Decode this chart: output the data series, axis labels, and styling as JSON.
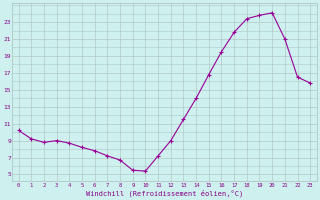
{
  "hours": [
    0,
    1,
    2,
    3,
    4,
    5,
    6,
    7,
    8,
    9,
    10,
    11,
    12,
    13,
    14,
    15,
    16,
    17,
    18,
    19,
    20,
    21,
    22,
    23
  ],
  "y_values": [
    10.2,
    9.2,
    8.8,
    9.0,
    8.7,
    8.2,
    7.8,
    7.2,
    6.7,
    5.5,
    5.4,
    7.2,
    9.0,
    11.5,
    14.0,
    16.8,
    19.5,
    21.8,
    23.4,
    23.8,
    24.1,
    21.0,
    16.5,
    15.8
  ],
  "line_color": "#990099",
  "bg_color": "#cef0ee",
  "grid_color": "#b0c8c8",
  "xlabel": "Windchill (Refroidissement éolien,°C)",
  "ylabel_ticks": [
    5,
    7,
    9,
    11,
    13,
    15,
    17,
    19,
    21,
    23
  ],
  "ylim": [
    4.2,
    25.2
  ],
  "xlim": [
    -0.5,
    23.5
  ],
  "font_color": "#880088"
}
